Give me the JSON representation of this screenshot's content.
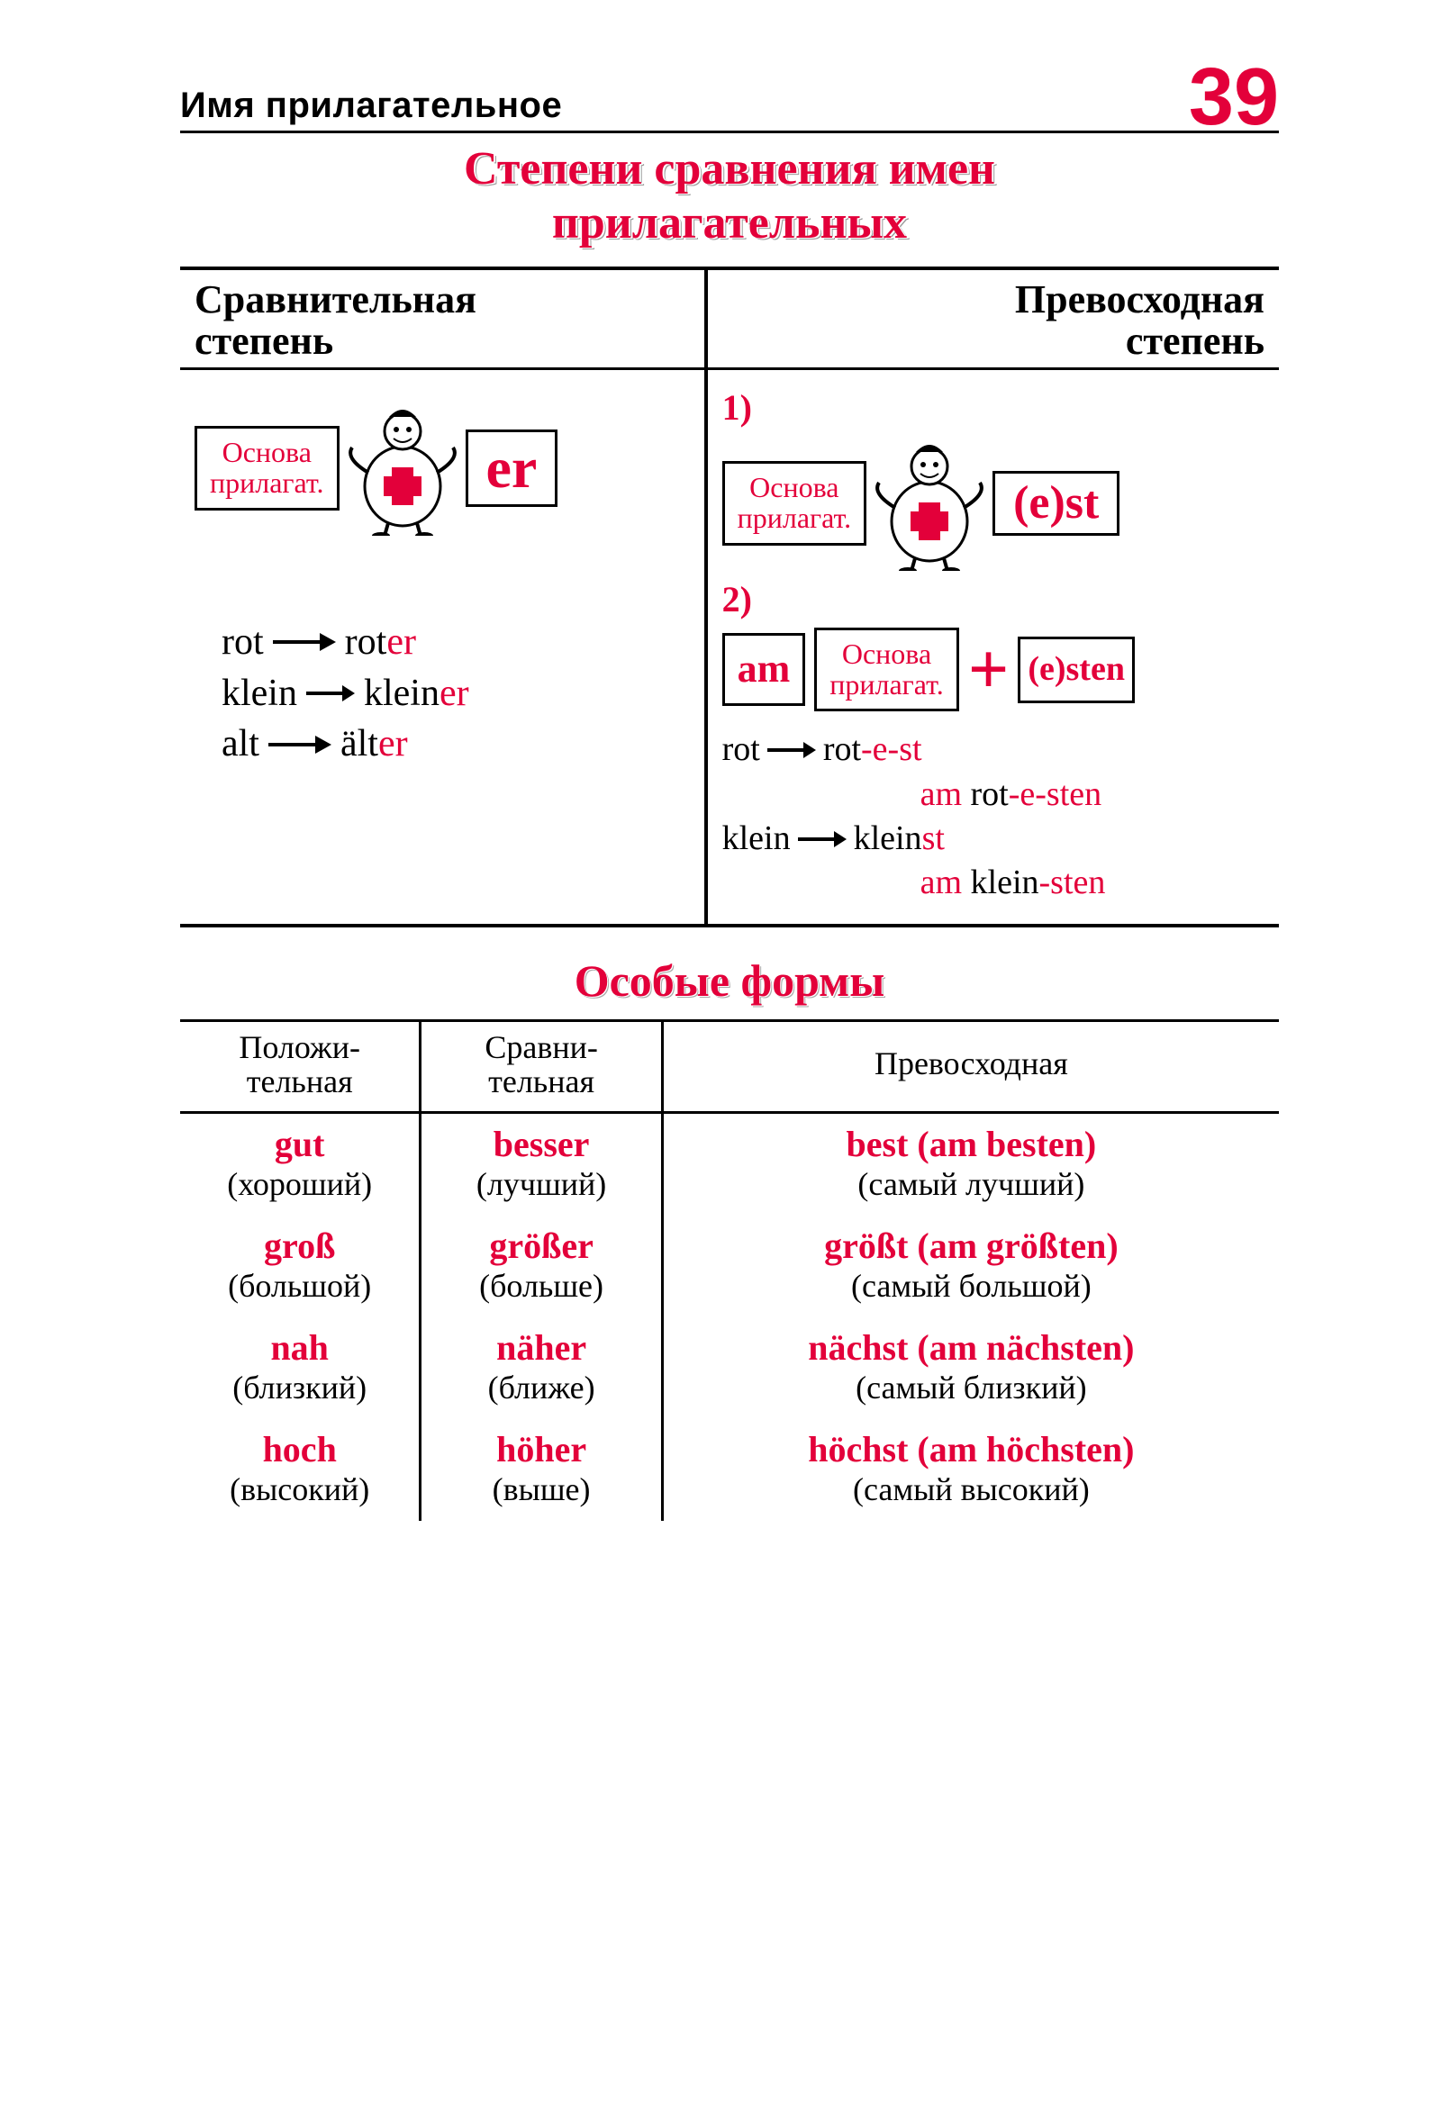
{
  "colors": {
    "accent": "#e3003a",
    "text": "#000000",
    "background": "#ffffff"
  },
  "header": {
    "section_label": "Имя прилагательное",
    "page_number": "39"
  },
  "main_title_l1": "Степени сравнения имен",
  "main_title_l2": "прилагательных",
  "columns": {
    "left_head_l1": "Сравнительная",
    "left_head_l2": "степень",
    "right_head_l1": "Превосходная",
    "right_head_l2": "степень"
  },
  "formula_base_l1": "Основа",
  "formula_base_l2": "прилагат.",
  "suffix_er": "er",
  "suffix_est": "(e)st",
  "label_1": "1)",
  "label_2": "2)",
  "am_box": "am",
  "suffix_esten": "(e)sten",
  "plus_symbol": "+",
  "left_examples": {
    "r1_a": "rot",
    "r1_b": "rot",
    "r1_suf": "er",
    "r2_a": "klein",
    "r2_b": "klein",
    "r2_suf": "er",
    "r3_a": "alt",
    "r3_b": "ält",
    "r3_suf": "er"
  },
  "right_examples": {
    "r1_a": "rot",
    "r1_b": "rot",
    "r1_suf": "-e-st",
    "r1c_pre": "am ",
    "r1c_b": "rot",
    "r1c_suf": "-e-sten",
    "r2_a": "klein",
    "r2_b": "klein",
    "r2_suf": "st",
    "r2c_pre": "am ",
    "r2c_b": "klein",
    "r2c_suf": "-sten"
  },
  "special_title": "Особые формы",
  "special_headers": {
    "c1_l1": "Положи-",
    "c1_l2": "тельная",
    "c2_l1": "Сравни-",
    "c2_l2": "тельная",
    "c3": "Превосходная"
  },
  "special_rows": [
    {
      "pos_de": "gut",
      "pos_ru": "(хороший)",
      "cmp_de": "besser",
      "cmp_ru": "(лучший)",
      "sup_de": "best (am besten)",
      "sup_ru": "(самый лучший)"
    },
    {
      "pos_de": "groß",
      "pos_ru": "(большой)",
      "cmp_de": "größer",
      "cmp_ru": "(больше)",
      "sup_de": "größt (am größten)",
      "sup_ru": "(самый большой)"
    },
    {
      "pos_de": "nah",
      "pos_ru": "(близкий)",
      "cmp_de": "näher",
      "cmp_ru": "(ближе)",
      "sup_de": "nächst (am nächsten)",
      "sup_ru": "(самый близкий)"
    },
    {
      "pos_de": "hoch",
      "pos_ru": "(высокий)",
      "cmp_de": "höher",
      "cmp_ru": "(выше)",
      "sup_de": "höchst (am höchsten)",
      "sup_ru": "(самый высокий)"
    }
  ]
}
